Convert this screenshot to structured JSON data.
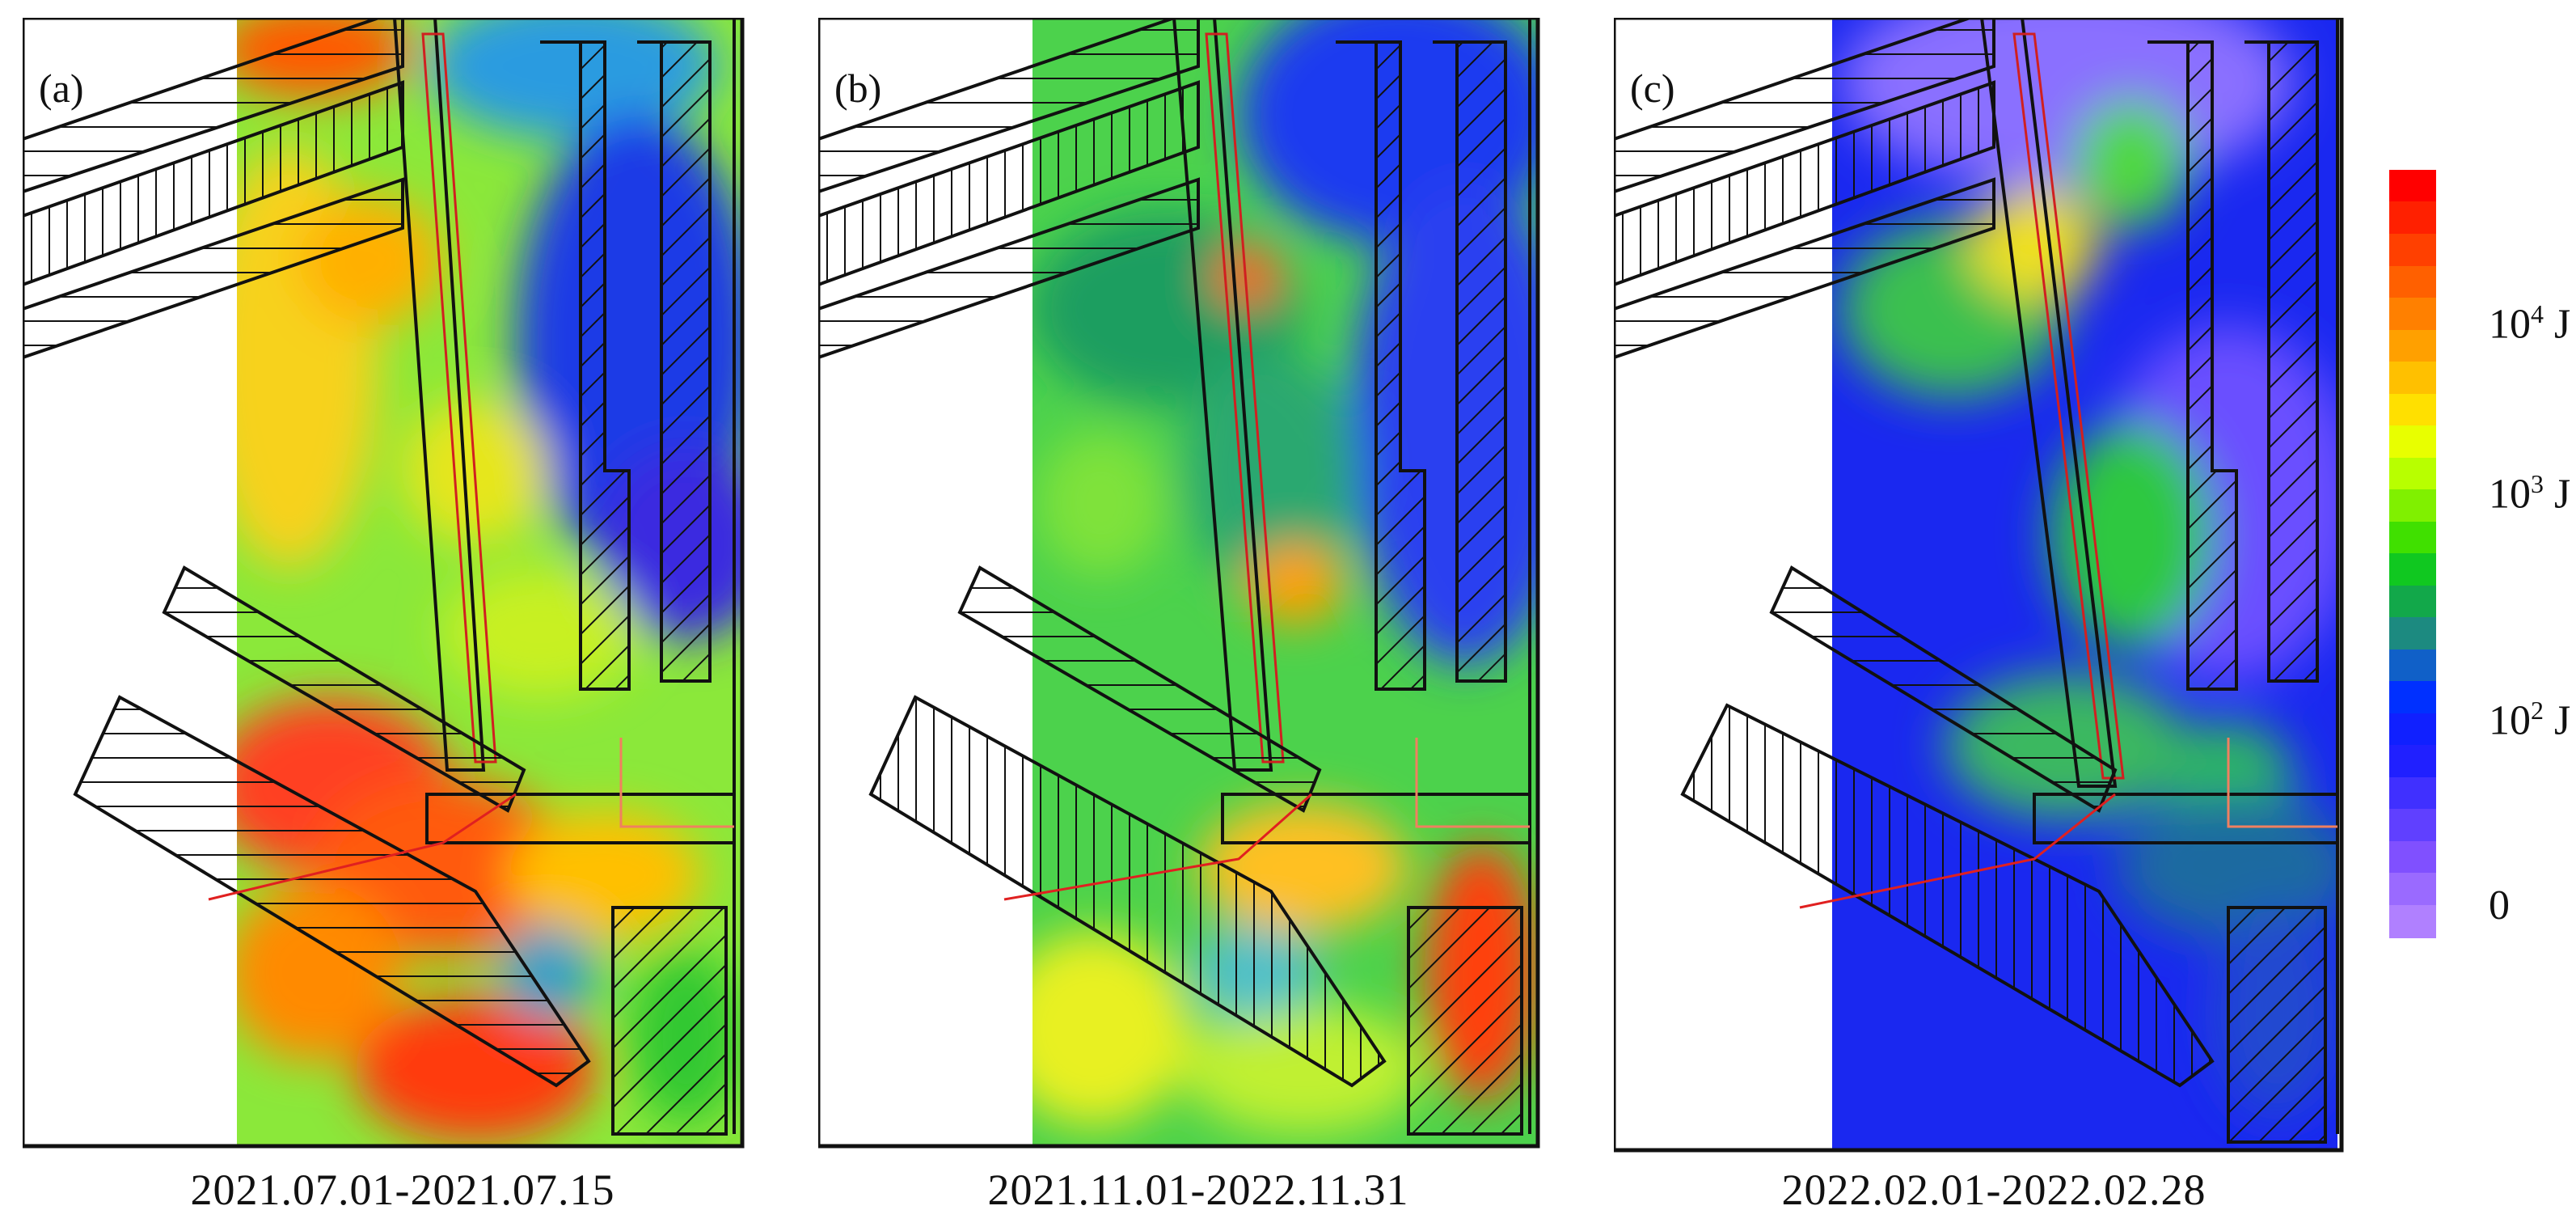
{
  "panels": [
    {
      "label": "(a)",
      "period": "2021.07.01-2021.07.15"
    },
    {
      "label": "(b)",
      "period": "2021.11.01-2022.11.31"
    },
    {
      "label": "(c)",
      "period": "2022.02.01-2022.02.28"
    }
  ],
  "legend": {
    "scale": [
      {
        "base": "10",
        "exp": "4",
        "unit": " J"
      },
      {
        "base": "10",
        "exp": "3",
        "unit": " J"
      },
      {
        "base": "10",
        "exp": "2",
        "unit": " J"
      },
      {
        "base": "0",
        "exp": "",
        "unit": ""
      }
    ],
    "colors": [
      "#ff0000",
      "#ff2000",
      "#ff4000",
      "#ff6000",
      "#ff8000",
      "#ffa000",
      "#ffc000",
      "#ffe000",
      "#e8ff00",
      "#b8ff00",
      "#80f000",
      "#40e000",
      "#10c820",
      "#12a84a",
      "#1c8a80",
      "#1060c8",
      "#0030ff",
      "#1020ff",
      "#2020ff",
      "#4030ff",
      "#6040ff",
      "#8050ff",
      "#9a6aff",
      "#b080ff"
    ]
  }
}
